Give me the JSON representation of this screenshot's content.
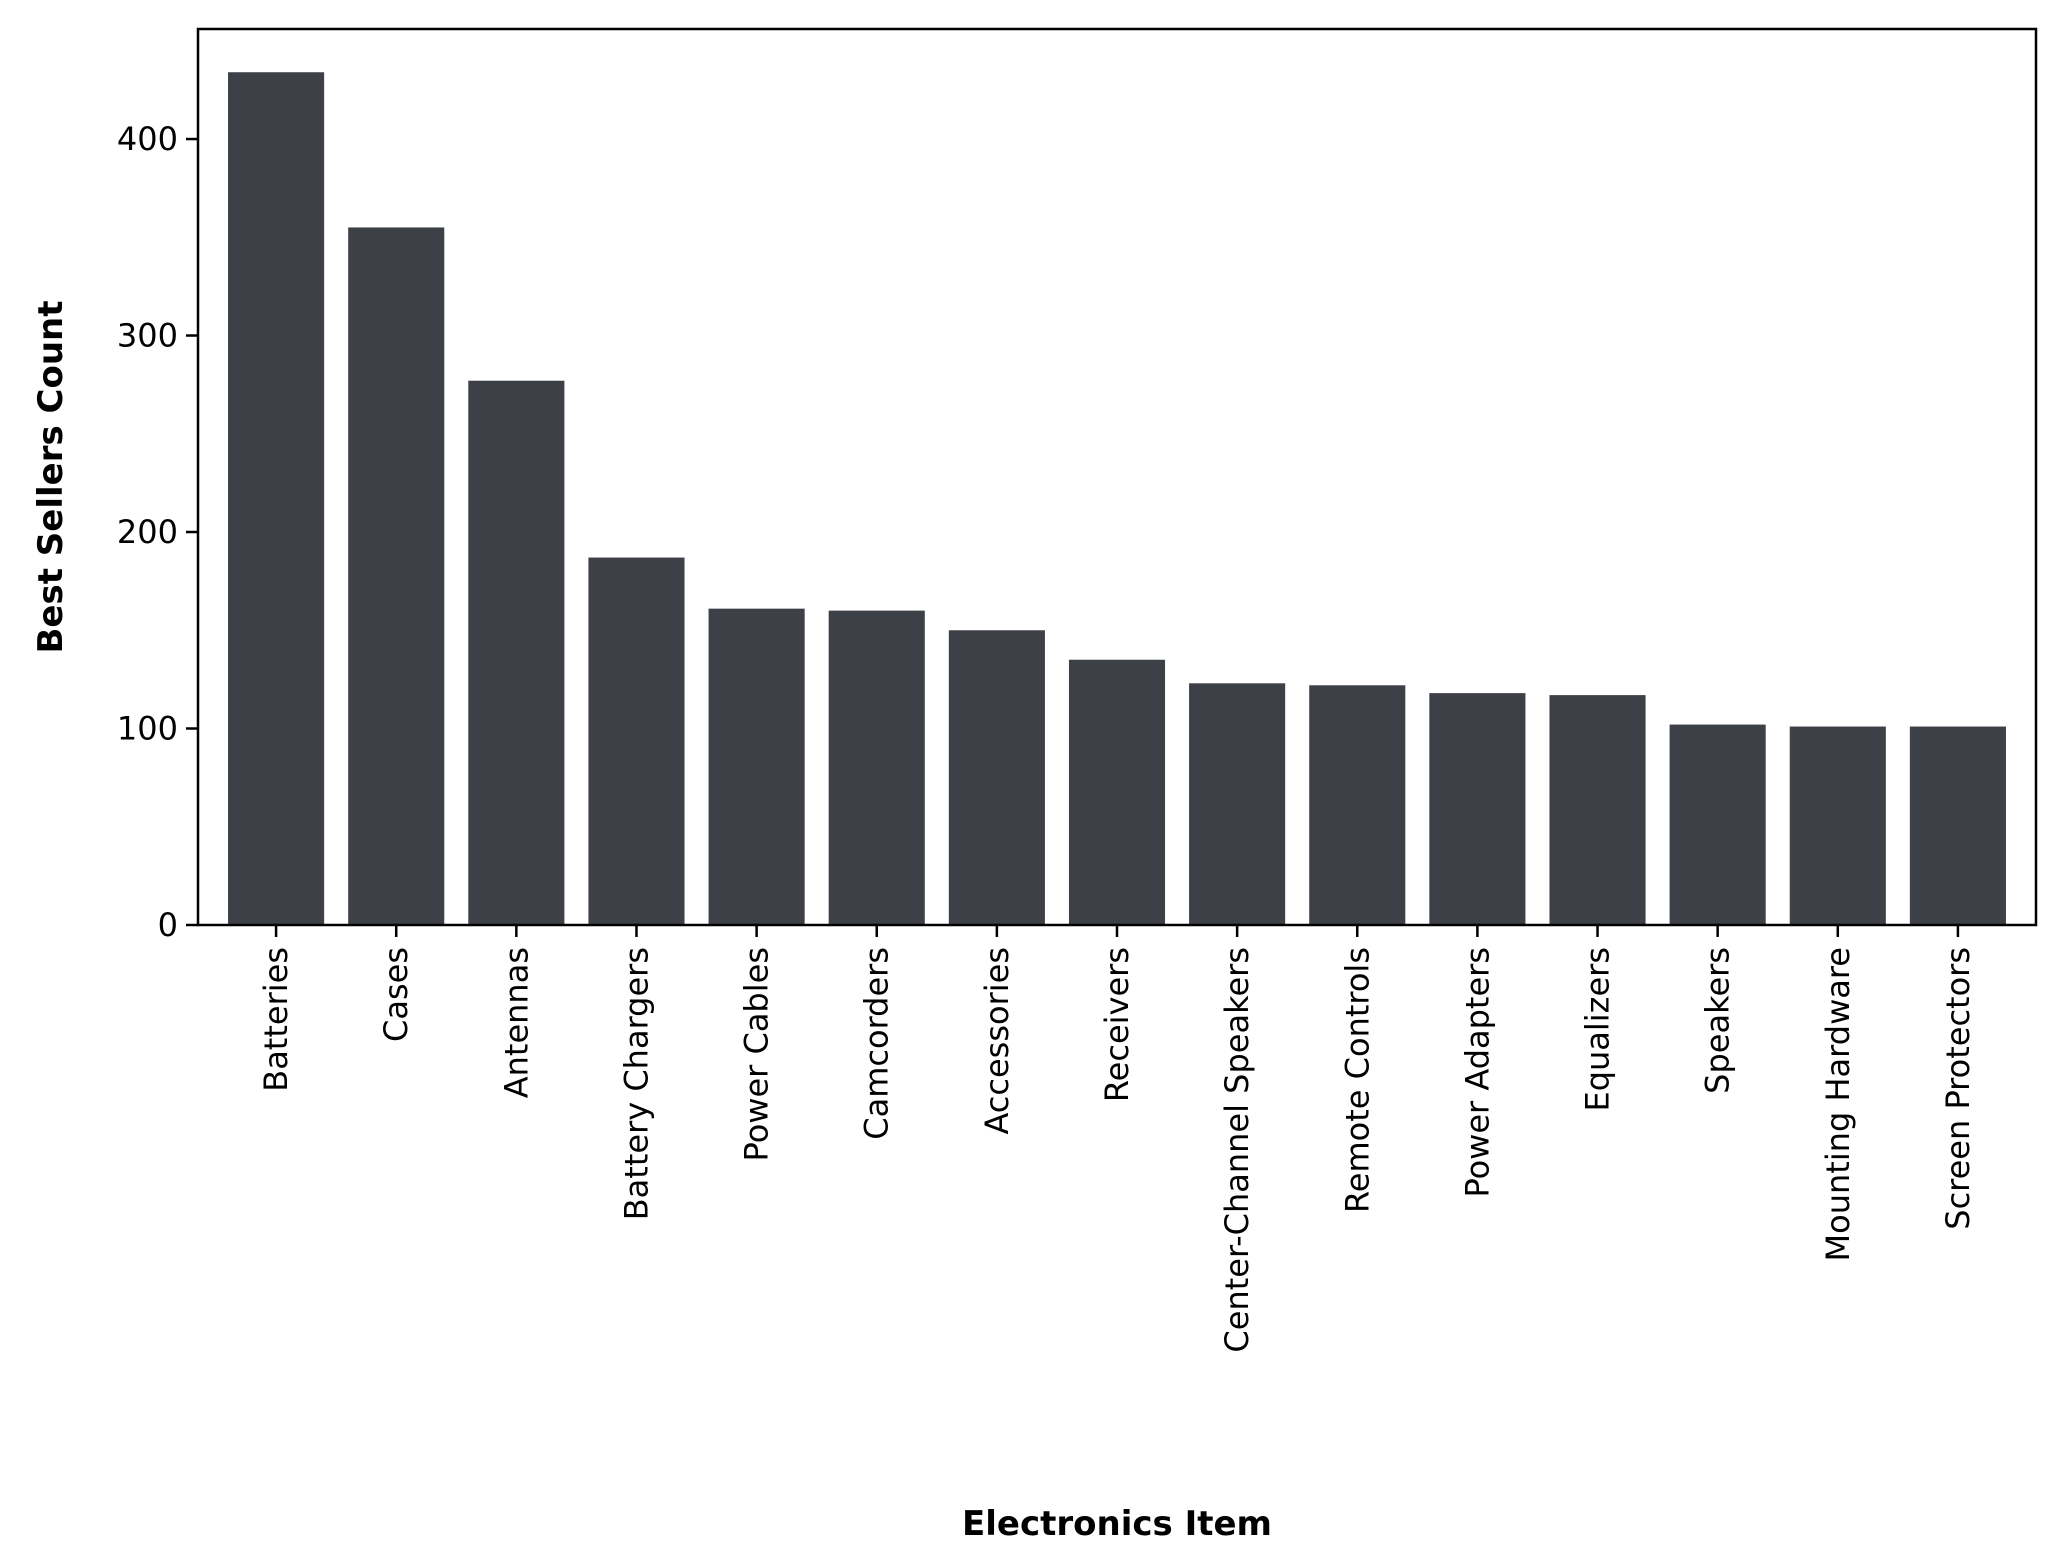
{
  "chart_data": {
    "type": "bar",
    "title": "",
    "xlabel": "Electronics Item",
    "ylabel": "Best Sellers Count",
    "categories": [
      "Batteries",
      "Cases",
      "Antennas",
      "Battery Chargers",
      "Power Cables",
      "Camcorders",
      "Accessories",
      "Receivers",
      "Center-Channel Speakers",
      "Remote Controls",
      "Power Adapters",
      "Equalizers",
      "Speakers",
      "Mounting Hardware",
      "Screen Protectors"
    ],
    "values": [
      434,
      355,
      277,
      187,
      161,
      160,
      150,
      135,
      123,
      122,
      118,
      117,
      102,
      101,
      101
    ],
    "yticks": [
      0,
      100,
      200,
      300,
      400
    ],
    "ylim": [
      0,
      456
    ],
    "grid": false,
    "legend": "none",
    "bar_color": "#3d4047"
  }
}
